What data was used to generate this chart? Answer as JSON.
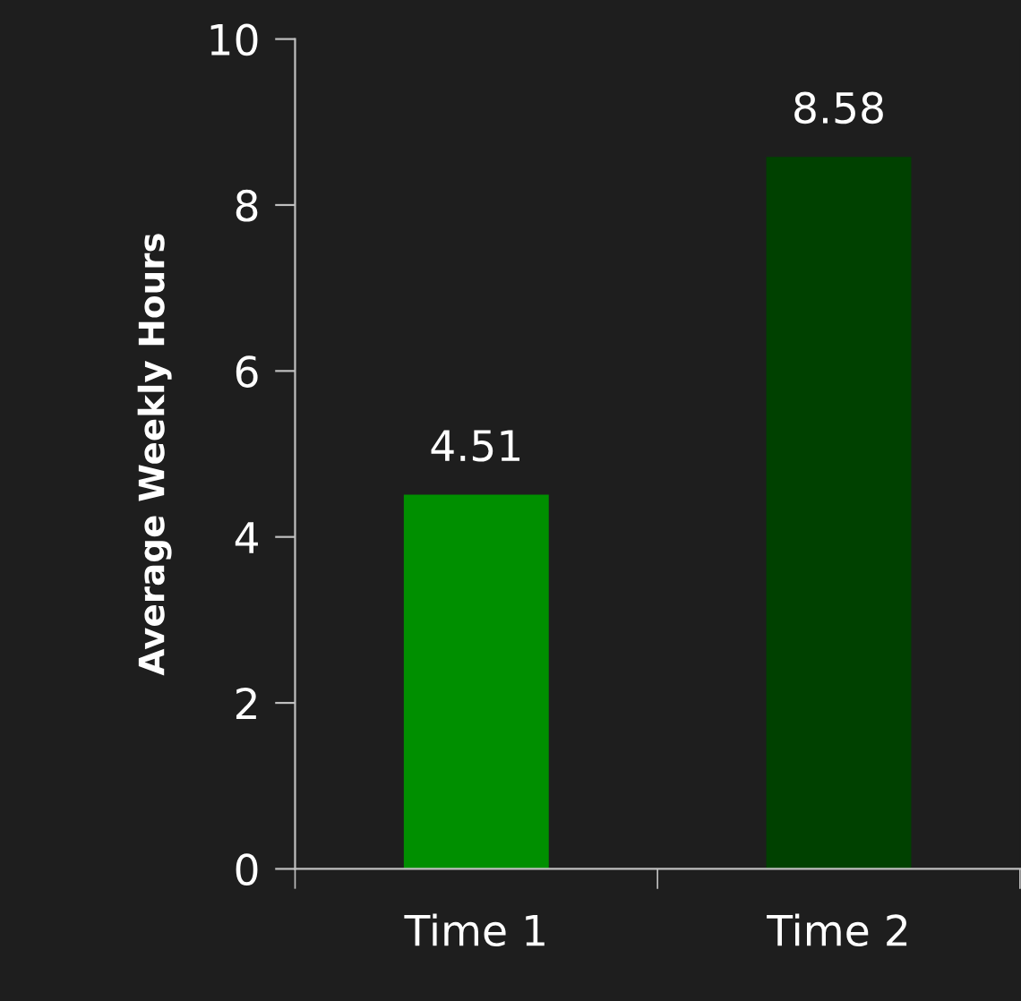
{
  "chart_data": {
    "type": "bar",
    "ylabel": "Average Weekly Hours",
    "categories": [
      "Time 1",
      "Time 2"
    ],
    "values": [
      4.51,
      8.58
    ],
    "colors": [
      "#008f00",
      "#004100"
    ],
    "ylim": [
      0,
      10
    ],
    "yticks": [
      0,
      2,
      4,
      6,
      8,
      10
    ],
    "grid": false,
    "legend": false,
    "data_labels": true
  }
}
